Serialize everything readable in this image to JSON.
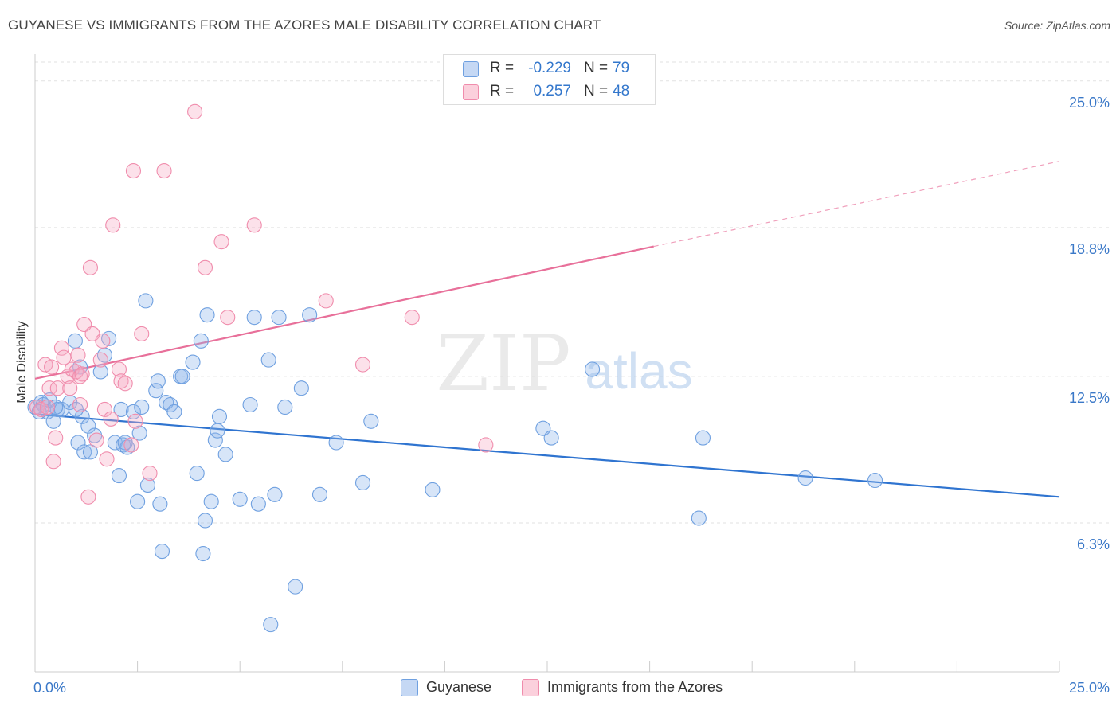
{
  "title": "GUYANESE VS IMMIGRANTS FROM THE AZORES MALE DISABILITY CORRELATION CHART",
  "source": "Source: ZipAtlas.com",
  "watermark": {
    "zip": "ZIP",
    "atlas": "atlas"
  },
  "legend": {
    "rows": [
      {
        "r_label": "R =",
        "r_value": "-0.229",
        "n_label": "N =",
        "n_value": "79",
        "color": "#6fa0e0"
      },
      {
        "r_label": "R =",
        "r_value": "0.257",
        "n_label": "N =",
        "n_value": "48",
        "color": "#f08cac"
      }
    ]
  },
  "bottom_legend": {
    "series1": "Guyanese",
    "series2": "Immigrants from the Azores"
  },
  "chart_data": {
    "type": "scatter",
    "title": "GUYANESE VS IMMIGRANTS FROM THE AZORES MALE DISABILITY CORRELATION CHART",
    "ylabel": "Male Disability",
    "xlabel": "",
    "xlim": [
      0,
      25
    ],
    "ylim": [
      0,
      25.8
    ],
    "x_tick_labels": [
      "0.0%",
      "25.0%"
    ],
    "y_tick_labels": [
      "6.3%",
      "12.5%",
      "18.8%",
      "25.0%"
    ],
    "y_ticks": [
      6.3,
      12.5,
      18.8,
      25.0
    ],
    "grid": true,
    "legend_position": "top-center",
    "series": [
      {
        "name": "Guyanese",
        "color": "#6fa0e0",
        "trend": {
          "x": [
            0,
            25
          ],
          "y": [
            10.9,
            7.4
          ],
          "dashed_from": null
        },
        "points": [
          [
            0.0,
            11.2
          ],
          [
            0.15,
            11.4
          ],
          [
            0.2,
            11.3
          ],
          [
            0.3,
            11.0
          ],
          [
            0.35,
            11.5
          ],
          [
            0.45,
            10.6
          ],
          [
            0.55,
            11.1
          ],
          [
            0.65,
            11.1
          ],
          [
            0.85,
            11.4
          ],
          [
            0.98,
            14.0
          ],
          [
            1.05,
            9.7
          ],
          [
            1.1,
            12.9
          ],
          [
            1.15,
            10.8
          ],
          [
            1.2,
            9.3
          ],
          [
            1.3,
            10.4
          ],
          [
            1.35,
            9.3
          ],
          [
            1.45,
            10.0
          ],
          [
            1.6,
            12.7
          ],
          [
            1.7,
            13.4
          ],
          [
            1.8,
            14.1
          ],
          [
            1.95,
            9.7
          ],
          [
            2.05,
            8.3
          ],
          [
            2.1,
            11.1
          ],
          [
            2.15,
            9.6
          ],
          [
            2.25,
            9.5
          ],
          [
            2.4,
            11.0
          ],
          [
            2.5,
            7.2
          ],
          [
            2.55,
            10.1
          ],
          [
            2.6,
            11.2
          ],
          [
            2.7,
            15.7
          ],
          [
            2.75,
            7.9
          ],
          [
            2.95,
            11.9
          ],
          [
            3.0,
            12.3
          ],
          [
            3.05,
            7.1
          ],
          [
            3.1,
            5.1
          ],
          [
            3.2,
            11.4
          ],
          [
            3.3,
            11.3
          ],
          [
            3.4,
            11.0
          ],
          [
            3.55,
            12.5
          ],
          [
            3.6,
            12.5
          ],
          [
            3.85,
            13.1
          ],
          [
            3.95,
            8.4
          ],
          [
            4.05,
            14.0
          ],
          [
            4.1,
            5.0
          ],
          [
            4.15,
            6.4
          ],
          [
            4.2,
            15.1
          ],
          [
            4.3,
            7.2
          ],
          [
            4.4,
            9.8
          ],
          [
            4.45,
            10.2
          ],
          [
            4.5,
            10.8
          ],
          [
            4.65,
            9.2
          ],
          [
            5.0,
            7.3
          ],
          [
            5.25,
            11.3
          ],
          [
            5.35,
            15.0
          ],
          [
            5.45,
            7.1
          ],
          [
            5.7,
            13.2
          ],
          [
            5.85,
            7.5
          ],
          [
            5.95,
            15.0
          ],
          [
            6.1,
            11.2
          ],
          [
            6.35,
            3.6
          ],
          [
            6.5,
            12.0
          ],
          [
            6.7,
            15.1
          ],
          [
            6.95,
            7.5
          ],
          [
            7.35,
            9.7
          ],
          [
            8.0,
            8.0
          ],
          [
            8.2,
            10.6
          ],
          [
            9.7,
            7.7
          ],
          [
            12.4,
            10.3
          ],
          [
            12.6,
            9.9
          ],
          [
            13.6,
            12.8
          ],
          [
            16.2,
            6.5
          ],
          [
            16.3,
            9.9
          ],
          [
            18.8,
            8.2
          ],
          [
            20.5,
            8.1
          ],
          [
            5.75,
            2.0
          ],
          [
            1.0,
            11.1
          ],
          [
            0.5,
            11.2
          ],
          [
            0.1,
            11.0
          ],
          [
            2.2,
            9.7
          ]
        ]
      },
      {
        "name": "Immigrants from the Azores",
        "color": "#f08cac",
        "trend": {
          "x": [
            0,
            15.1,
            25
          ],
          "y": [
            12.4,
            18.0,
            21.6
          ],
          "dashed_from": 15.1
        },
        "points": [
          [
            0.05,
            11.2
          ],
          [
            0.15,
            11.1
          ],
          [
            0.25,
            13.0
          ],
          [
            0.3,
            11.2
          ],
          [
            0.35,
            12.0
          ],
          [
            0.4,
            12.9
          ],
          [
            0.45,
            8.9
          ],
          [
            0.5,
            9.9
          ],
          [
            0.55,
            12.0
          ],
          [
            0.65,
            13.7
          ],
          [
            0.7,
            13.3
          ],
          [
            0.8,
            12.5
          ],
          [
            0.85,
            12.0
          ],
          [
            0.9,
            12.8
          ],
          [
            1.0,
            12.7
          ],
          [
            1.05,
            13.4
          ],
          [
            1.1,
            12.5
          ],
          [
            1.15,
            12.6
          ],
          [
            1.2,
            14.7
          ],
          [
            1.3,
            7.4
          ],
          [
            1.35,
            17.1
          ],
          [
            1.4,
            14.3
          ],
          [
            1.5,
            9.8
          ],
          [
            1.6,
            13.2
          ],
          [
            1.65,
            14.0
          ],
          [
            1.7,
            11.1
          ],
          [
            1.75,
            9.0
          ],
          [
            1.85,
            10.7
          ],
          [
            1.9,
            18.9
          ],
          [
            2.05,
            12.8
          ],
          [
            2.1,
            12.3
          ],
          [
            2.2,
            12.2
          ],
          [
            2.35,
            9.6
          ],
          [
            2.4,
            21.2
          ],
          [
            2.45,
            10.6
          ],
          [
            2.6,
            14.3
          ],
          [
            2.8,
            8.4
          ],
          [
            3.15,
            21.2
          ],
          [
            3.9,
            23.7
          ],
          [
            4.15,
            17.1
          ],
          [
            4.55,
            18.2
          ],
          [
            4.7,
            15.0
          ],
          [
            5.35,
            18.9
          ],
          [
            7.1,
            15.7
          ],
          [
            8.0,
            13.0
          ],
          [
            9.2,
            15.0
          ],
          [
            11.0,
            9.6
          ],
          [
            1.1,
            11.3
          ]
        ]
      }
    ]
  }
}
